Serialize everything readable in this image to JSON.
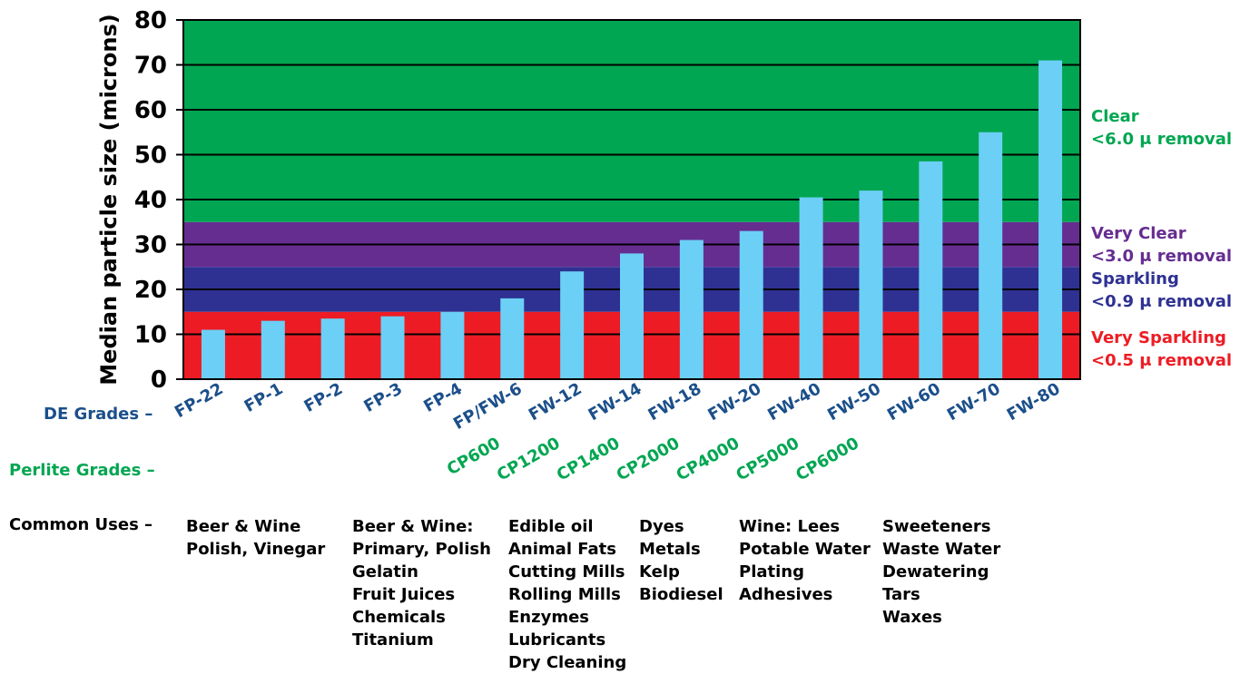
{
  "chart_data": {
    "type": "bar",
    "ylabel": "Median particle size (microns)",
    "ylim": [
      0,
      80
    ],
    "yticks": [
      0,
      10,
      20,
      30,
      40,
      50,
      60,
      70,
      80
    ],
    "grid": true,
    "categories": [
      "FP-22",
      "FP-1",
      "FP-2",
      "FP-3",
      "FP-4",
      "FP/FW-6",
      "FW-12",
      "FW-14",
      "FW-18",
      "FW-20",
      "FW-40",
      "FW-50",
      "FW-60",
      "FW-70",
      "FW-80"
    ],
    "values": [
      11,
      13,
      13.5,
      14,
      15,
      18,
      24,
      28,
      31,
      33,
      40.5,
      42,
      48.5,
      55,
      71
    ],
    "bar_color": "#6ccff6",
    "perlite_grades": [
      "CP600",
      "CP1200",
      "CP1400",
      "CP2000",
      "CP4000",
      "CP5000",
      "CP6000"
    ],
    "bands": [
      {
        "from": 0,
        "to": 15,
        "color": "#ed1c24",
        "label1": "Very Sparkling",
        "label2": "<0.5 μ removal"
      },
      {
        "from": 15,
        "to": 25,
        "color": "#2e3192",
        "label1": "Sparkling",
        "label2": "<0.9 μ removal"
      },
      {
        "from": 25,
        "to": 35,
        "color": "#662d91",
        "label1": "Very Clear",
        "label2": "<3.0 μ removal"
      },
      {
        "from": 35,
        "to": 80,
        "color": "#00a651",
        "label1": "Clear",
        "label2": "<6.0 μ removal"
      }
    ]
  },
  "colors": {
    "de_text": "#1b4f8a",
    "perlite_text": "#00a651",
    "very_sparkling_text": "#ed1c24",
    "sparkling_text": "#2e3192",
    "very_clear_text": "#662d91",
    "clear_text": "#00a651"
  },
  "row_labels": {
    "de": "DE Grades –",
    "perlite": "Perlite Grades –",
    "uses": "Common Uses –"
  },
  "common_uses": [
    [
      "Beer & Wine",
      "Polish, Vinegar"
    ],
    [
      "Beer & Wine:",
      "Primary, Polish",
      "Gelatin",
      "Fruit Juices",
      "Chemicals",
      "Titanium"
    ],
    [
      "Edible oil",
      "Animal Fats",
      "Cutting Mills",
      "Rolling Mills",
      "Enzymes",
      "Lubricants",
      "Dry Cleaning"
    ],
    [
      "Dyes",
      "Metals",
      "Kelp",
      "Biodiesel"
    ],
    [
      "Wine: Lees",
      "Potable Water",
      "Plating",
      "Adhesives"
    ],
    [
      "Sweeteners",
      "Waste Water",
      "Dewatering",
      "Tars",
      "Waxes"
    ]
  ]
}
